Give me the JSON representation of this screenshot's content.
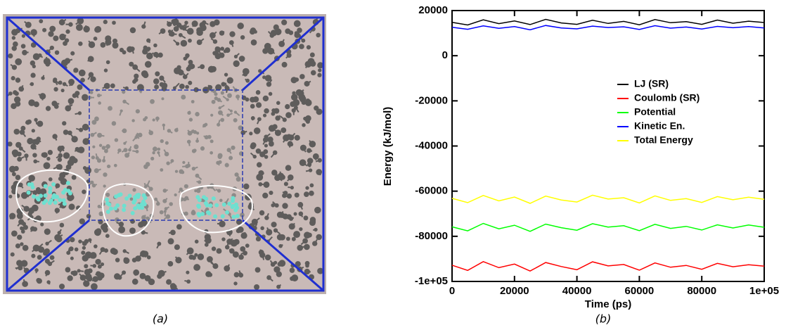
{
  "captions": {
    "a": "(a)",
    "b": "(b)"
  },
  "chart_data": {
    "type": "line",
    "x_label": "Time (ps)",
    "y_label": "Energy (kJ/mol)",
    "x": [
      0,
      5000,
      10000,
      15000,
      20000,
      25000,
      30000,
      35000,
      40000,
      45000,
      50000,
      55000,
      60000,
      65000,
      70000,
      75000,
      80000,
      85000,
      90000,
      95000,
      100000
    ],
    "xlim": [
      0,
      100000
    ],
    "xticks": [
      0,
      20000,
      40000,
      60000,
      80000,
      {
        "value": 100000,
        "label": "1e+05"
      }
    ],
    "ylim": [
      -100000,
      20000
    ],
    "yticks": [
      {
        "value": -100000,
        "label": "-1e+05"
      },
      -80000,
      -60000,
      -40000,
      -20000,
      0,
      20000
    ],
    "legend": "upper right",
    "series": [
      {
        "name": "LJ (SR)",
        "color": "#000000",
        "values": [
          14800,
          13600,
          15900,
          14200,
          15400,
          13800,
          16100,
          14500,
          13900,
          15700,
          14300,
          15200,
          13700,
          16000,
          14600,
          15100,
          13900,
          15800,
          14400,
          15300,
          14700
        ]
      },
      {
        "name": "Coulomb (SR)",
        "color": "#ff0000",
        "values": [
          -92800,
          -95100,
          -91200,
          -93900,
          -92300,
          -95400,
          -91600,
          -93400,
          -94800,
          -91300,
          -93100,
          -92500,
          -95000,
          -91800,
          -93700,
          -92900,
          -94600,
          -92000,
          -93500,
          -92600,
          -93200
        ]
      },
      {
        "name": "Potential",
        "color": "#00ff00",
        "values": [
          -75800,
          -77600,
          -74300,
          -76700,
          -75100,
          -77800,
          -74600,
          -76200,
          -77300,
          -74400,
          -75900,
          -75300,
          -77500,
          -74700,
          -76500,
          -75600,
          -77200,
          -74900,
          -76300,
          -75000,
          -76000
        ]
      },
      {
        "name": "Kinetic En.",
        "color": "#0000ff",
        "values": [
          12600,
          11700,
          13200,
          12100,
          12900,
          11500,
          13400,
          12300,
          11900,
          13100,
          12500,
          12800,
          11600,
          13300,
          12200,
          12700,
          11800,
          13000,
          12400,
          12900,
          12300
        ]
      },
      {
        "name": "Total Energy",
        "color": "#ffff00",
        "values": [
          -63200,
          -65100,
          -61900,
          -64300,
          -62600,
          -65400,
          -62200,
          -63900,
          -64800,
          -61800,
          -63500,
          -62900,
          -65200,
          -62100,
          -64100,
          -63300,
          -65000,
          -62400,
          -63800,
          -62700,
          -63600
        ]
      }
    ]
  }
}
